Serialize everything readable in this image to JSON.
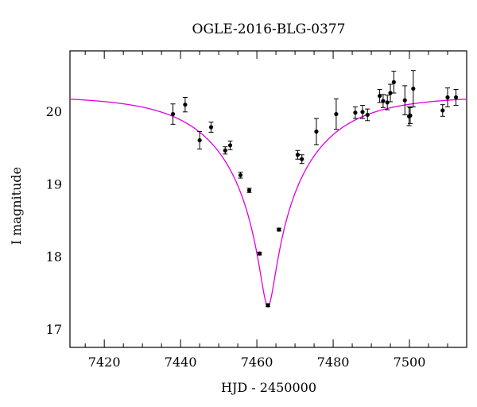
{
  "chart_data": {
    "type": "scatter",
    "title": "OGLE-2016-BLG-0377",
    "xlabel": "HJD - 2450000",
    "ylabel": "I magnitude",
    "xlim": [
      7411,
      7515
    ],
    "ylim": [
      20.83,
      16.75
    ],
    "y_inverted": true,
    "grid": false,
    "legend": "none",
    "x_ticks": [
      7420,
      7440,
      7460,
      7480,
      7500
    ],
    "y_ticks": [
      17,
      18,
      19,
      20
    ],
    "x_tick_labels": [
      "7420",
      "7440",
      "7460",
      "7480",
      "7500"
    ],
    "y_tick_labels": [
      "17",
      "18",
      "19",
      "20"
    ],
    "colors": {
      "model": "#e000e0",
      "data": "#000000"
    },
    "model": {
      "baseline_mag": 20.21,
      "t0": 7462.9,
      "peak_mag": 17.32,
      "u0": 0.079,
      "tE": 22.0
    },
    "series": [
      {
        "points": [
          {
            "x": 7438.0,
            "y": 19.96,
            "err": 0.14
          },
          {
            "x": 7441.2,
            "y": 20.09,
            "err": 0.1
          },
          {
            "x": 7445.0,
            "y": 19.6,
            "err": 0.12
          },
          {
            "x": 7448.0,
            "y": 19.78,
            "err": 0.07
          },
          {
            "x": 7451.7,
            "y": 19.46,
            "err": 0.05
          },
          {
            "x": 7453.0,
            "y": 19.53,
            "err": 0.06
          },
          {
            "x": 7455.7,
            "y": 19.12,
            "err": 0.04
          },
          {
            "x": 7458.0,
            "y": 18.91,
            "err": 0.03
          },
          {
            "x": 7460.7,
            "y": 18.04,
            "err": 0.02
          },
          {
            "x": 7462.9,
            "y": 17.33,
            "err": 0.02
          },
          {
            "x": 7465.8,
            "y": 18.37,
            "err": 0.02
          },
          {
            "x": 7470.7,
            "y": 19.4,
            "err": 0.06
          },
          {
            "x": 7471.8,
            "y": 19.34,
            "err": 0.06
          },
          {
            "x": 7475.6,
            "y": 19.72,
            "err": 0.18
          },
          {
            "x": 7480.8,
            "y": 19.96,
            "err": 0.21
          },
          {
            "x": 7485.8,
            "y": 19.98,
            "err": 0.08
          },
          {
            "x": 7487.7,
            "y": 19.99,
            "err": 0.09
          },
          {
            "x": 7489.0,
            "y": 19.95,
            "err": 0.08
          },
          {
            "x": 7492.2,
            "y": 20.21,
            "err": 0.09
          },
          {
            "x": 7493.1,
            "y": 20.14,
            "err": 0.09
          },
          {
            "x": 7494.2,
            "y": 20.12,
            "err": 0.1
          },
          {
            "x": 7495.0,
            "y": 20.25,
            "err": 0.12
          },
          {
            "x": 7495.9,
            "y": 20.4,
            "err": 0.15
          },
          {
            "x": 7498.8,
            "y": 20.15,
            "err": 0.2
          },
          {
            "x": 7499.9,
            "y": 19.93,
            "err": 0.13
          },
          {
            "x": 7500.2,
            "y": 19.94,
            "err": 0.11
          },
          {
            "x": 7501.0,
            "y": 20.31,
            "err": 0.25
          },
          {
            "x": 7508.7,
            "y": 20.01,
            "err": 0.08
          },
          {
            "x": 7510.0,
            "y": 20.19,
            "err": 0.13
          },
          {
            "x": 7512.2,
            "y": 20.19,
            "err": 0.11
          }
        ]
      }
    ]
  }
}
